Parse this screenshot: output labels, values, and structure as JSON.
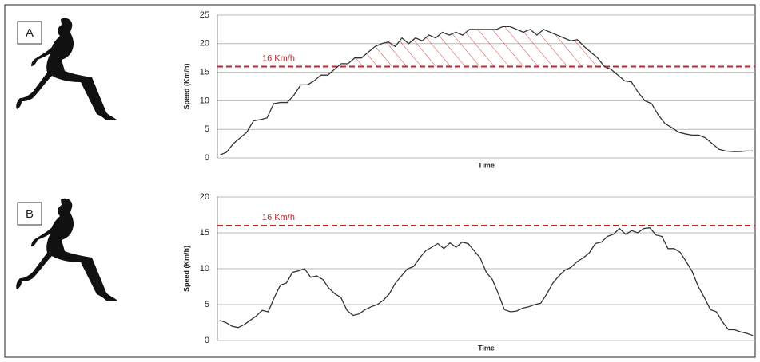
{
  "chart_data": [
    {
      "type": "line",
      "panel": "A",
      "ylabel": "Speed (Km/h)",
      "xlabel": "Time",
      "color": "#333333",
      "ylim": [
        0,
        25
      ],
      "yticks": [
        0,
        5,
        10,
        15,
        20,
        25
      ],
      "grid": true,
      "threshold": 16,
      "threshold_label": "16 Km/h",
      "threshold_color": "#c0262b",
      "hatch": true,
      "values": [
        0.5,
        1,
        2.5,
        3.5,
        4.5,
        6.5,
        6.7,
        7,
        9.5,
        9.7,
        9.7,
        11,
        12.8,
        12.8,
        13.5,
        14.5,
        14.5,
        15.5,
        16.5,
        16.5,
        17.5,
        17.5,
        18.5,
        19.5,
        20,
        20.3,
        19.5,
        21,
        20,
        21,
        20.5,
        21.5,
        21,
        22,
        21.5,
        22,
        21.5,
        22.5,
        22.5,
        22.5,
        22.5,
        22.5,
        23,
        23,
        22.5,
        22,
        22.5,
        21.5,
        22.5,
        22,
        21.5,
        21,
        20.5,
        20.7,
        19.5,
        18.5,
        17.5,
        16,
        15.5,
        14.5,
        13.5,
        13.3,
        11.5,
        10,
        9.5,
        7.5,
        6,
        5.3,
        4.5,
        4.2,
        4,
        4,
        3.5,
        2.5,
        1.5,
        1.2,
        1.1,
        1.1,
        1.2,
        1.2
      ]
    },
    {
      "type": "line",
      "panel": "B",
      "ylabel": "Speed (Km/h)",
      "xlabel": "Time",
      "color": "#333333",
      "ylim": [
        0,
        20
      ],
      "yticks": [
        0,
        5,
        10,
        15,
        20
      ],
      "grid": true,
      "threshold": 16,
      "threshold_label": "16 Km/h",
      "threshold_color": "#c0262b",
      "hatch": false,
      "values": [
        2.8,
        2.5,
        2,
        1.8,
        2.2,
        2.8,
        3.4,
        4.2,
        4,
        6,
        7.7,
        8,
        9.5,
        9.7,
        10,
        8.8,
        9,
        8.5,
        7.3,
        6.5,
        6,
        4.2,
        3.5,
        3.7,
        4.3,
        4.7,
        5,
        5.6,
        6.5,
        8,
        9,
        10,
        10.3,
        11.5,
        12.5,
        13,
        13.5,
        12.8,
        13.6,
        13,
        13.7,
        13.5,
        12.5,
        11.5,
        9.5,
        8.5,
        6.5,
        4.3,
        4,
        4.1,
        4.5,
        4.7,
        5,
        5.2,
        6.5,
        8,
        9,
        9.8,
        10.2,
        11,
        11.5,
        12.2,
        13.5,
        13.7,
        14.5,
        14.8,
        15.6,
        14.8,
        15.3,
        15,
        15.6,
        15.7,
        14.7,
        14.5,
        12.8,
        12.8,
        12.3,
        11,
        9.6,
        7.5,
        6,
        4.3,
        4,
        2.6,
        1.5,
        1.5,
        1.2,
        1,
        0.7
      ]
    }
  ]
}
